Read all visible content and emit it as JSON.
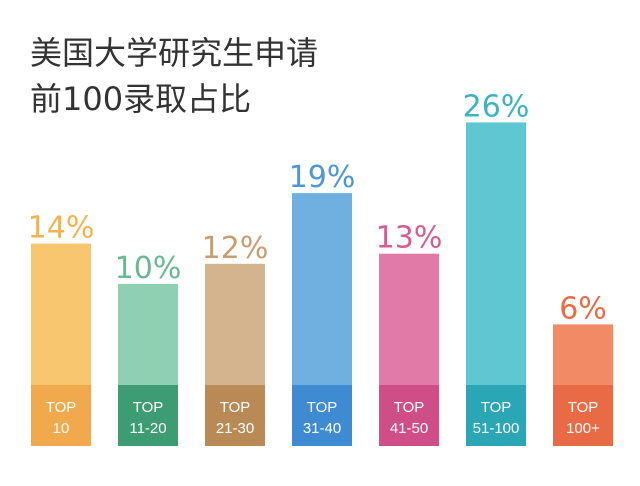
{
  "title_lines": [
    "美国大学研究生申请",
    "前100录取占比"
  ],
  "chart_data": {
    "type": "bar",
    "title": "美国大学研究生申请前100录取占比",
    "categories": [
      [
        "TOP",
        "10"
      ],
      [
        "TOP",
        "11-20"
      ],
      [
        "TOP",
        "21-30"
      ],
      [
        "TOP",
        "31-40"
      ],
      [
        "TOP",
        "41-50"
      ],
      [
        "TOP",
        "51-100"
      ],
      [
        "TOP",
        "100+"
      ]
    ],
    "values": [
      14,
      10,
      12,
      19,
      13,
      26,
      6
    ],
    "value_labels": [
      "14%",
      "10%",
      "12%",
      "19%",
      "13%",
      "26%",
      "6%"
    ],
    "unit": "%",
    "colors": [
      "#f9c670",
      "#8fd0b2",
      "#d4b48f",
      "#6fb0e1",
      "#e27aa8",
      "#5ec7d2",
      "#f28a66"
    ],
    "label_colors": [
      "#f2b54e",
      "#6ab893",
      "#c69e72",
      "#4f97d3",
      "#d65d94",
      "#3bb3c0",
      "#e76c47"
    ],
    "base_colors": [
      "#f0a94d",
      "#3e9c72",
      "#b98a55",
      "#3f8bd1",
      "#d04e88",
      "#2aa6b4",
      "#e86b45"
    ],
    "axis_text_color": "#ffffff",
    "grid": false,
    "legend": "none"
  }
}
